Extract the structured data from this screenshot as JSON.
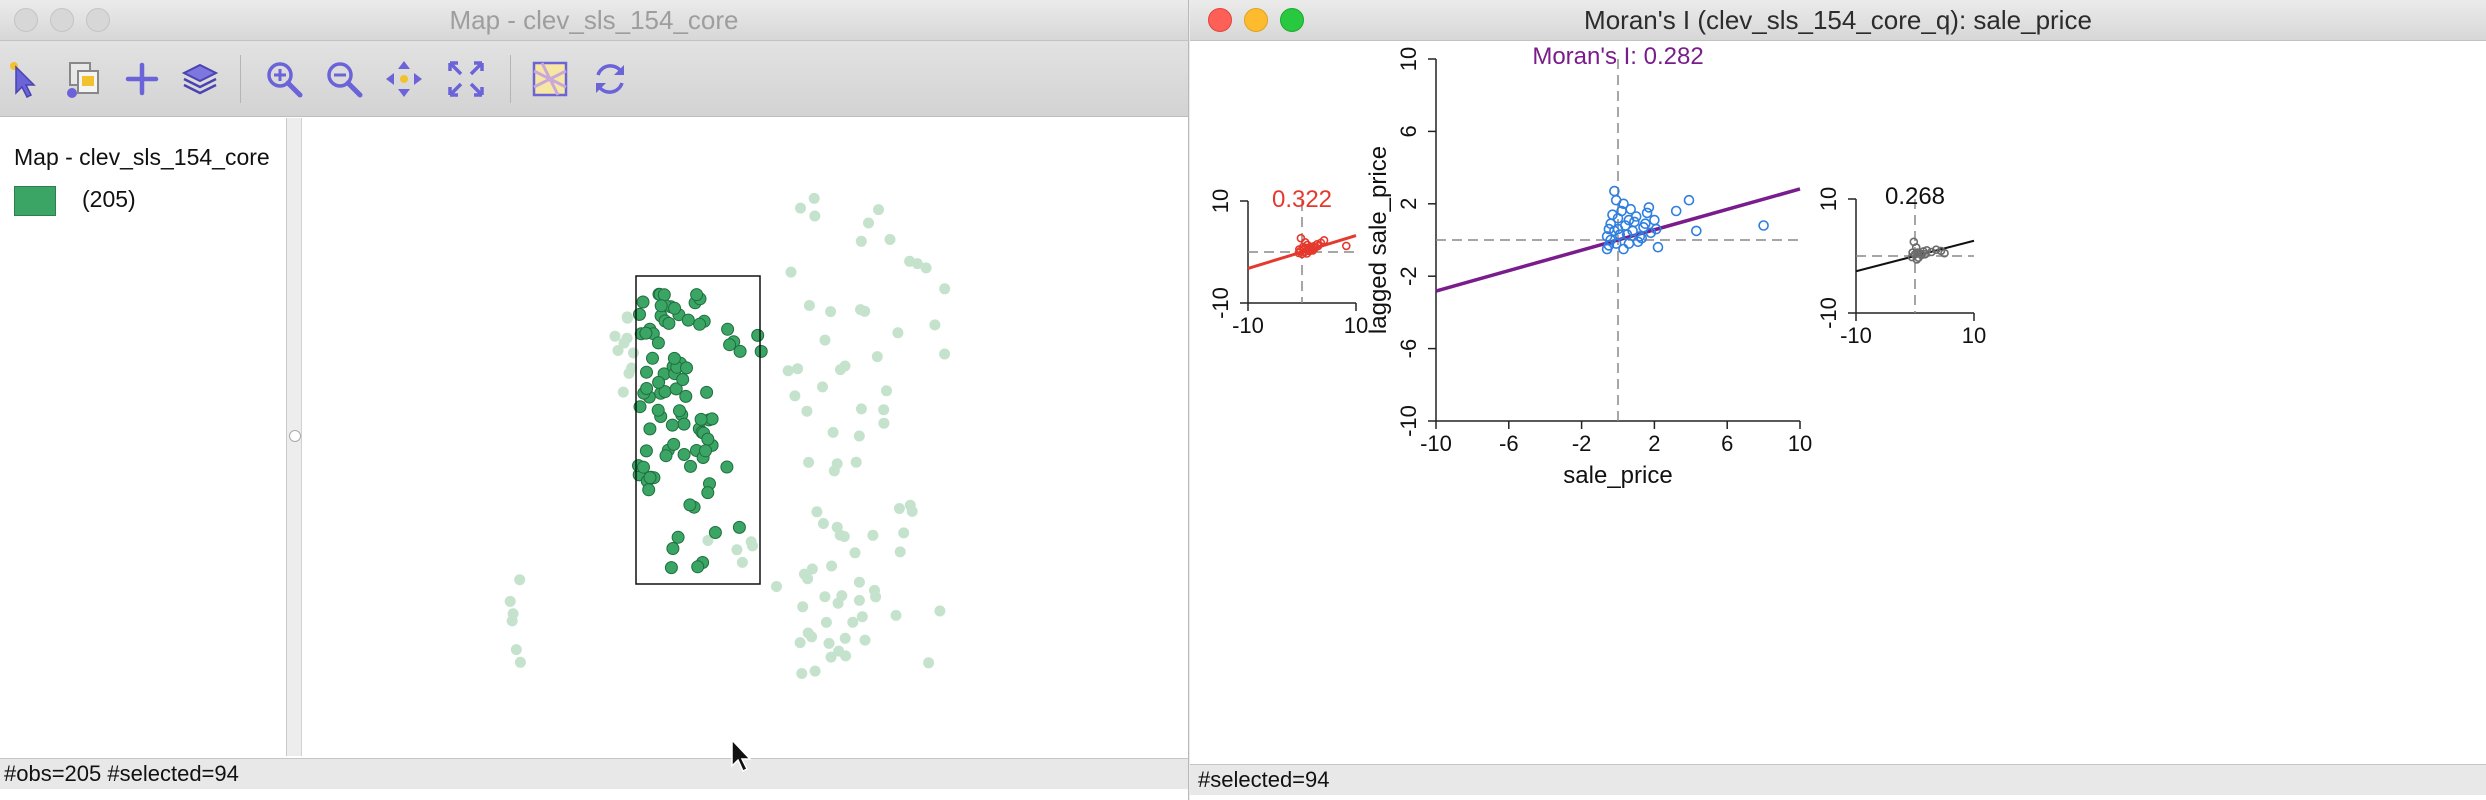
{
  "map_window": {
    "title": "Map - clev_sls_154_core",
    "toolbar": [
      {
        "name": "select-icon"
      },
      {
        "name": "copy-map-icon"
      },
      {
        "name": "plus-icon"
      },
      {
        "name": "layers-icon"
      },
      {
        "name": "zoom-in-icon"
      },
      {
        "name": "zoom-out-icon"
      },
      {
        "name": "pan-icon"
      },
      {
        "name": "full-extent-icon"
      },
      {
        "name": "basemap-icon"
      },
      {
        "name": "refresh-icon"
      }
    ],
    "legend": {
      "title": "Map - clev_sls_154_core",
      "count_label": "(205)",
      "swatch_color": "#3aa564"
    },
    "status": "#obs=205 #selected=94",
    "colors": {
      "selected": "#3aa564",
      "unselected": "#c5e2cc"
    }
  },
  "moran_window": {
    "title": "Moran's I (clev_sls_154_core_q): sale_price",
    "status": "#selected=94"
  },
  "chart_data": [
    {
      "type": "scatter",
      "title": "0.322",
      "xlim": [
        -10,
        10
      ],
      "ylim": [
        -10,
        10
      ],
      "x_ticks": [
        "-10",
        "10"
      ],
      "y_ticks": [
        "10",
        "-10"
      ],
      "color": "#e5392e",
      "regression": {
        "slope": 0.322
      },
      "points": [
        [
          0.3,
          0.6
        ],
        [
          0.8,
          0.8
        ],
        [
          1.2,
          0.4
        ],
        [
          1.6,
          0.9
        ],
        [
          2.1,
          1.1
        ],
        [
          2.8,
          1.5
        ],
        [
          3.5,
          1.8
        ],
        [
          4.1,
          2.3
        ],
        [
          3.0,
          1.2
        ],
        [
          1.0,
          1.4
        ],
        [
          -0.3,
          0.2
        ],
        [
          -0.6,
          -0.2
        ],
        [
          0.0,
          -0.4
        ],
        [
          0.5,
          0.0
        ],
        [
          1.8,
          0.5
        ],
        [
          2.4,
          0.8
        ],
        [
          -0.2,
          2.7
        ],
        [
          0.6,
          1.9
        ],
        [
          0.9,
          -0.3
        ],
        [
          1.4,
          0.2
        ],
        [
          2.0,
          0.3
        ],
        [
          8.2,
          1.2
        ],
        [
          -0.5,
          0.5
        ],
        [
          0.2,
          1.0
        ]
      ]
    },
    {
      "type": "scatter",
      "title": "Moran's I: 0.282",
      "xlabel": "sale_price",
      "ylabel": "lagged sale_price",
      "xlim": [
        -10,
        10
      ],
      "ylim": [
        -10,
        10
      ],
      "x_ticks": [
        "-10",
        "-6",
        "-2",
        "2",
        "6",
        "10"
      ],
      "y_ticks": [
        "10",
        "6",
        "2",
        "-2",
        "-6",
        "-10"
      ],
      "color": "#2f7fe0",
      "regression": {
        "slope": 0.282,
        "color": "#7a1d8c"
      },
      "points": [
        [
          -0.6,
          0.2
        ],
        [
          -0.4,
          0.9
        ],
        [
          -0.5,
          -0.3
        ],
        [
          -0.2,
          0.5
        ],
        [
          0.0,
          1.2
        ],
        [
          0.2,
          1.6
        ],
        [
          0.4,
          0.8
        ],
        [
          0.6,
          -0.2
        ],
        [
          0.8,
          0.5
        ],
        [
          1.0,
          1.3
        ],
        [
          1.2,
          0.2
        ],
        [
          1.4,
          0.7
        ],
        [
          1.6,
          1.5
        ],
        [
          1.8,
          0.4
        ],
        [
          2.0,
          1.1
        ],
        [
          2.2,
          -0.4
        ],
        [
          -0.6,
          -0.5
        ],
        [
          -0.3,
          1.4
        ],
        [
          0.1,
          0.3
        ],
        [
          0.3,
          -0.5
        ],
        [
          0.7,
          1.7
        ],
        [
          1.1,
          -0.1
        ],
        [
          1.5,
          0.9
        ],
        [
          -0.5,
          0.6
        ],
        [
          -0.1,
          -0.2
        ],
        [
          0.5,
          0.3
        ],
        [
          0.9,
          1.0
        ],
        [
          2.1,
          0.6
        ],
        [
          3.2,
          1.6
        ],
        [
          3.9,
          2.2
        ],
        [
          8.0,
          0.8
        ],
        [
          -0.2,
          2.7
        ],
        [
          -0.1,
          2.2
        ],
        [
          0.3,
          2.0
        ],
        [
          1.7,
          1.8
        ],
        [
          4.3,
          0.5
        ],
        [
          -0.4,
          0.0
        ],
        [
          0.0,
          0.6
        ],
        [
          0.6,
          1.1
        ],
        [
          1.3,
          0.1
        ]
      ]
    },
    {
      "type": "scatter",
      "title": "0.268",
      "xlim": [
        -10,
        10
      ],
      "ylim": [
        -10,
        10
      ],
      "x_ticks": [
        "-10",
        "10"
      ],
      "y_ticks": [
        "10",
        "-10"
      ],
      "color": "#6b6b6b",
      "regression": {
        "slope": 0.268
      },
      "points": [
        [
          -0.5,
          -0.2
        ],
        [
          0.0,
          0.3
        ],
        [
          0.4,
          0.6
        ],
        [
          0.9,
          0.4
        ],
        [
          1.4,
          0.8
        ],
        [
          2.0,
          1.0
        ],
        [
          2.8,
          0.7
        ],
        [
          3.6,
          1.1
        ],
        [
          4.4,
          0.9
        ],
        [
          0.2,
          1.5
        ],
        [
          -0.2,
          2.5
        ],
        [
          0.6,
          -0.3
        ],
        [
          1.1,
          0.2
        ],
        [
          -0.4,
          0.6
        ],
        [
          0.3,
          -0.6
        ],
        [
          1.7,
          0.3
        ],
        [
          5.0,
          0.5
        ]
      ]
    }
  ]
}
